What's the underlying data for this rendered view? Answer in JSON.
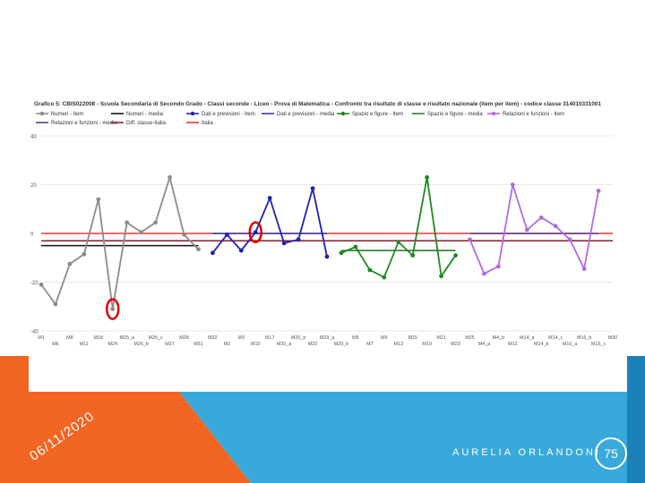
{
  "slide": {
    "date": "06/11/2020",
    "author": "AURELIA ORLANDONI",
    "page_number": "75"
  },
  "colors": {
    "orange": "#f26522",
    "blue": "#39a9db",
    "dark_blue": "#1c81b8"
  },
  "chart_data": {
    "type": "line",
    "title": "Grafico 5: CBIS022008 - Scuola Secondaria di Secondo Grado - Classi seconde - Liceo - Prova di Matematica - Confronto tra risultato di classe e risultato nazionale (item per item) - codice classe 314010331001",
    "ylim": [
      -40,
      40
    ],
    "yticks": [
      40,
      20,
      0,
      -20,
      -40
    ],
    "grid": true,
    "legend_position": "top",
    "legend": [
      {
        "label": "Numeri - Item",
        "color": "#8c8c8c",
        "style": "marker"
      },
      {
        "label": "Numeri - media",
        "color": "#111111",
        "style": "line"
      },
      {
        "label": "Dati e previsioni - Item",
        "color": "#2020b8",
        "style": "marker"
      },
      {
        "label": "Dati e previsioni - media",
        "color": "#3a3aa0",
        "style": "line"
      },
      {
        "label": "Spazio e figure - Item",
        "color": "#1f8a1f",
        "style": "marker"
      },
      {
        "label": "Spazio e figure - media",
        "color": "#2f7d2f",
        "style": "line"
      },
      {
        "label": "Relazioni e funzioni - Item",
        "color": "#b36ae2",
        "style": "marker"
      },
      {
        "label": "Relazioni e funzioni - media",
        "color": "#5a3f8a",
        "style": "line"
      },
      {
        "label": "Diff. classe-Italia",
        "color": "#8b2e3c",
        "style": "line"
      },
      {
        "label": "Italia",
        "color": "#e53935",
        "style": "line"
      }
    ],
    "x_labels": [
      "M1",
      "M6",
      "M8",
      "M11",
      "M18",
      "M24",
      "M25_a",
      "M26_b",
      "M26_c",
      "M27",
      "M28",
      "M31",
      "M32",
      "M2",
      "M3",
      "M10",
      "M17",
      "M20_a",
      "M20_b",
      "M22",
      "M29_a",
      "M29_b",
      "M5",
      "M7",
      "M9",
      "M13",
      "M15",
      "M19",
      "M21",
      "M23",
      "M25",
      "M4_a",
      "M4_b",
      "M12",
      "M14_a",
      "M14_b",
      "M14_c",
      "M16_a",
      "M16_b",
      "M16_c",
      "M30"
    ],
    "series": [
      {
        "name": "Numeri - Item",
        "color": "#8c8c8c",
        "start": 0,
        "values": [
          -21,
          -29,
          -12.5,
          -8.5,
          14,
          -31,
          4.5,
          0.5,
          4.5,
          23,
          -0.5,
          -6.5
        ]
      },
      {
        "name": "Dati e previsioni - Item",
        "color": "#2020b8",
        "start": 12,
        "values": [
          -8,
          -0.5,
          -7,
          0.5,
          14.5,
          -4,
          -2.5,
          18.5,
          -9.5
        ]
      },
      {
        "name": "Spazio e figure - Item",
        "color": "#1f8a1f",
        "start": 21,
        "values": [
          -8,
          -5.5,
          -15,
          -18,
          -3.5,
          -9,
          23,
          -17.5,
          -9
        ]
      },
      {
        "name": "Relazioni e funzioni - Item",
        "color": "#b36ae2",
        "start": 30,
        "values": [
          -2.5,
          -16.5,
          -13.5,
          20,
          1.5,
          6.5,
          3,
          -2.5,
          -14.5,
          17.5
        ]
      }
    ],
    "mean_lines": [
      {
        "name": "Numeri - media",
        "color": "#111111",
        "from": 0,
        "to": 11,
        "value": -5
      },
      {
        "name": "Dati e previsioni - media",
        "color": "#3a3aa0",
        "from": 12,
        "to": 20,
        "value": 0
      },
      {
        "name": "Spazio e figure - media",
        "color": "#2f7d2f",
        "from": 21,
        "to": 29,
        "value": -7
      },
      {
        "name": "Relazioni e funzioni - media",
        "color": "#5a3f8a",
        "from": 30,
        "to": 39,
        "value": 0
      }
    ],
    "reference_lines": [
      {
        "name": "Italia",
        "color": "#e53935",
        "value": 0
      },
      {
        "name": "Diff. classe-Italia",
        "color": "#8b2e3c",
        "value": -3
      }
    ],
    "highlights": [
      {
        "series": "Numeri - Item",
        "index": 5
      },
      {
        "series": "Dati e previsioni - Item",
        "index": 3
      }
    ]
  }
}
